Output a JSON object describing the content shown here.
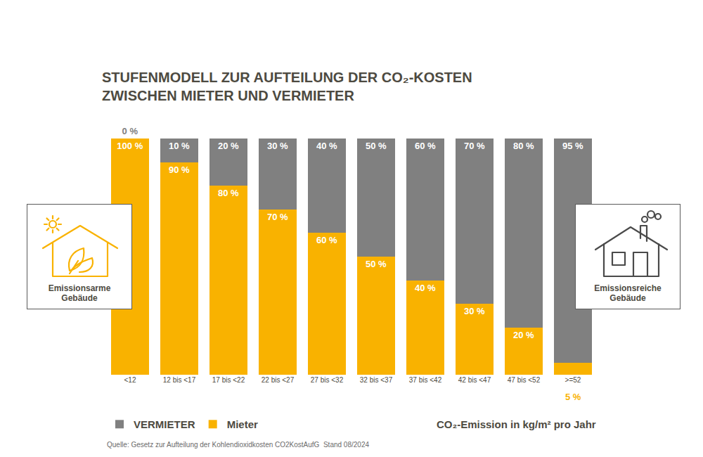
{
  "chart_data": {
    "type": "bar",
    "title": "STUFENMODELL ZUR AUFTEILUNG DER CO₂-KOSTEN\nZWISCHEN MIETER UND VERMIETER",
    "x_label": "CO₂-Emission in kg/m² pro Jahr",
    "source": "Quelle: Gesetz zur Aufteilung der Kohlendioxidkosten CO2KostAufG  Stand 08/2024",
    "side_labels": [
      "Emissionsarme\nGebäude",
      "Emissionsreiche\nGebäude"
    ],
    "categories": [
      "<12",
      "12 bis <17",
      "17 bis <22",
      "22 bis <27",
      "27 bis <32",
      "32 bis <37",
      "37 bis <42",
      "42 bis <47",
      "47 bis <52",
      ">=52"
    ],
    "series": [
      {
        "name": "Mieter",
        "color": "#f9b200",
        "values": [
          100,
          90,
          80,
          70,
          60,
          50,
          40,
          30,
          20,
          5
        ],
        "value_labels": [
          "100 %",
          "90 %",
          "80 %",
          "70 %",
          "60 %",
          "50 %",
          "40 %",
          "30 %",
          "20 %",
          "5 %"
        ]
      },
      {
        "name": "VERMIETER",
        "color": "#808080",
        "values": [
          0,
          10,
          20,
          30,
          40,
          50,
          60,
          70,
          80,
          95
        ],
        "value_labels": [
          "0 %",
          "10 %",
          "20 %",
          "30 %",
          "40 %",
          "50 %",
          "60 %",
          "70 %",
          "80 %",
          "95 %"
        ]
      }
    ],
    "ylim": [
      0,
      100
    ],
    "stacked": true,
    "data_labels": true,
    "tick_labels": "x",
    "grid": false,
    "legend": "bottom left"
  }
}
